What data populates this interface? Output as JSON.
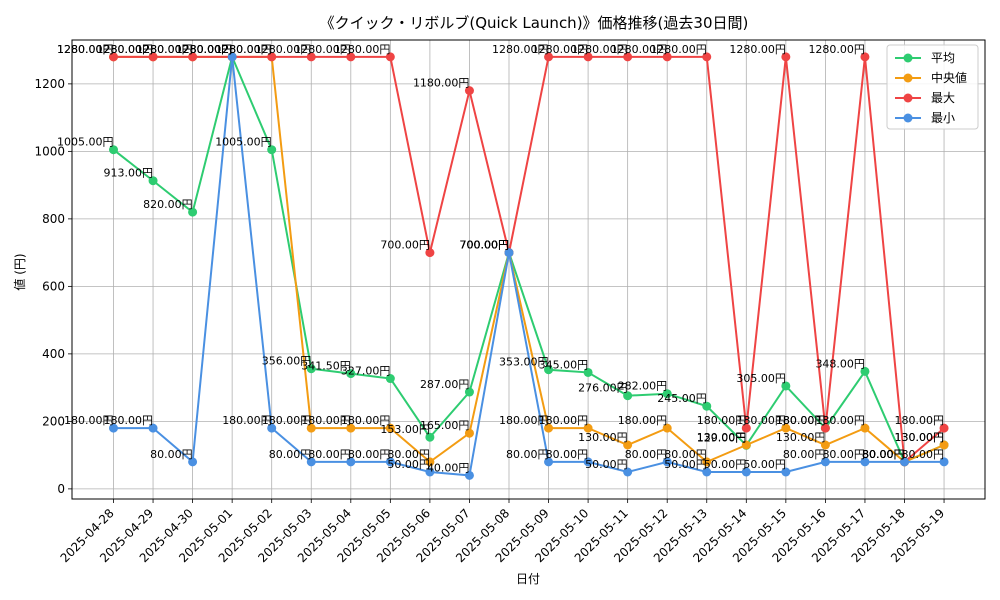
{
  "chart_data": {
    "type": "line",
    "title": "《クイック・リボルブ(Quick Launch)》価格推移(過去30日間)",
    "xlabel": "日付",
    "ylabel": "値 (円)",
    "ylim": [
      -30,
      1330
    ],
    "yticks": [
      0,
      200,
      400,
      600,
      800,
      1000,
      1200
    ],
    "grid": true,
    "legend_position": "top-right",
    "label_suffix": "円",
    "categories": [
      "2025-04-28",
      "2025-04-29",
      "2025-04-30",
      "2025-05-01",
      "2025-05-02",
      "2025-05-03",
      "2025-05-04",
      "2025-05-05",
      "2025-05-06",
      "2025-05-07",
      "2025-05-08",
      "2025-05-09",
      "2025-05-10",
      "2025-05-11",
      "2025-05-12",
      "2025-05-13",
      "2025-05-14",
      "2025-05-15",
      "2025-05-16",
      "2025-05-17",
      "2025-05-18",
      "2025-05-19"
    ],
    "series": [
      {
        "name": "平均",
        "color": "#2ecc71",
        "values": [
          1005,
          913,
          820,
          1280,
          1005,
          356,
          341.5,
          327,
          153,
          287,
          700,
          353,
          345,
          276,
          282,
          245,
          129,
          305,
          180,
          348,
          80,
          130
        ]
      },
      {
        "name": "中央値",
        "color": "#f39c12",
        "values": [
          1280,
          1280,
          1280,
          1280,
          1280,
          180,
          180,
          180,
          80,
          165,
          700,
          180,
          180,
          130,
          180,
          80,
          130,
          180,
          130,
          180,
          80,
          130
        ]
      },
      {
        "name": "最大",
        "color": "#ef4444",
        "values": [
          1280,
          1280,
          1280,
          1280,
          1280,
          1280,
          1280,
          1280,
          700,
          1180,
          700,
          1280,
          1280,
          1280,
          1280,
          1280,
          180,
          1280,
          180,
          1280,
          80,
          180
        ]
      },
      {
        "name": "最小",
        "color": "#4a90e2",
        "values": [
          180,
          180,
          80,
          1280,
          180,
          80,
          80,
          80,
          50,
          40,
          700,
          80,
          80,
          50,
          80,
          50,
          50,
          50,
          80,
          80,
          80,
          80
        ]
      }
    ]
  }
}
